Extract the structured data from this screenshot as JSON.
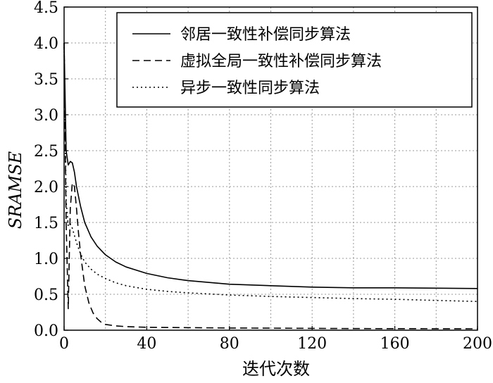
{
  "chart_data": {
    "type": "line",
    "xlabel": "迭代次数",
    "ylabel": "SRAMSE",
    "xlim": [
      0,
      200
    ],
    "ylim": [
      0,
      4.5
    ],
    "xticks": [
      0,
      40,
      80,
      120,
      160,
      200
    ],
    "yticks": [
      0.0,
      0.5,
      1.0,
      1.5,
      2.0,
      2.5,
      3.0,
      3.5,
      4.0,
      4.5
    ],
    "xtick_labels": [
      "0",
      "40",
      "80",
      "120",
      "160",
      "200"
    ],
    "ytick_labels": [
      "0.0",
      "0.5",
      "1.0",
      "1.5",
      "2.0",
      "2.5",
      "3.0",
      "3.5",
      "4.0",
      "4.5"
    ],
    "grid": true,
    "grid_style": "dotted",
    "legend_position": "top-right",
    "series": [
      {
        "name": "邻居一致性补偿同步算法",
        "line_style": "solid",
        "color": "#000000",
        "x": [
          0,
          1,
          2,
          3,
          4,
          5,
          6,
          8,
          10,
          13,
          16,
          20,
          25,
          30,
          40,
          50,
          60,
          80,
          100,
          120,
          140,
          160,
          180,
          200
        ],
        "y": [
          4.0,
          2.5,
          2.3,
          2.35,
          2.33,
          2.2,
          2.0,
          1.72,
          1.5,
          1.3,
          1.17,
          1.05,
          0.95,
          0.88,
          0.79,
          0.73,
          0.69,
          0.64,
          0.62,
          0.6,
          0.59,
          0.59,
          0.585,
          0.58
        ]
      },
      {
        "name": "虚拟全局一致性补偿同步算法",
        "line_style": "dashed",
        "color": "#000000",
        "x": [
          0,
          1,
          2,
          3,
          4,
          5,
          6,
          7,
          8,
          10,
          12,
          14,
          16,
          18,
          20,
          25,
          30,
          40,
          60,
          80,
          100,
          120,
          140,
          160,
          180,
          200
        ],
        "y": [
          4.0,
          1.5,
          0.3,
          1.7,
          2.05,
          2.0,
          1.7,
          1.35,
          1.05,
          0.62,
          0.38,
          0.24,
          0.16,
          0.11,
          0.08,
          0.06,
          0.05,
          0.04,
          0.035,
          0.03,
          0.028,
          0.025,
          0.023,
          0.022,
          0.021,
          0.02
        ]
      },
      {
        "name": "异步一致性同步算法",
        "line_style": "dotted",
        "color": "#000000",
        "x": [
          0,
          1,
          2,
          3,
          4,
          5,
          6,
          8,
          10,
          13,
          16,
          20,
          25,
          30,
          40,
          50,
          60,
          80,
          100,
          120,
          140,
          160,
          180,
          200
        ],
        "y": [
          4.0,
          1.8,
          1.45,
          1.48,
          1.42,
          1.32,
          1.22,
          1.06,
          0.95,
          0.85,
          0.78,
          0.72,
          0.66,
          0.62,
          0.57,
          0.54,
          0.52,
          0.49,
          0.47,
          0.455,
          0.44,
          0.43,
          0.415,
          0.4
        ]
      }
    ]
  }
}
